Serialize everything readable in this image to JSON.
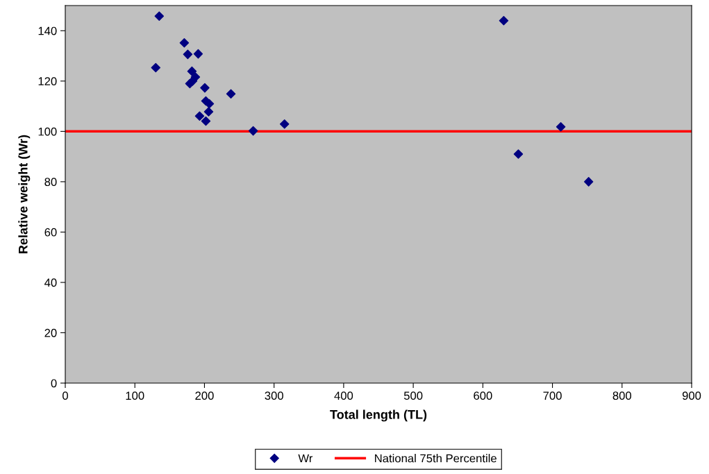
{
  "chart_data": {
    "type": "scatter",
    "xlabel": "Total length (TL)",
    "ylabel": "Relative weight (Wr)",
    "xlim": [
      0,
      900
    ],
    "xticks": [
      0,
      100,
      200,
      300,
      400,
      500,
      600,
      700,
      800,
      900
    ],
    "ylim": [
      0,
      150
    ],
    "yticks": [
      0,
      20,
      40,
      60,
      80,
      100,
      120,
      140
    ],
    "series": [
      {
        "name": "Wr",
        "color": "#000080",
        "marker": "diamond",
        "x": [
          135,
          171,
          176,
          191,
          130,
          182,
          187,
          179,
          183,
          200.5,
          238,
          202,
          207,
          206,
          193,
          202,
          270,
          315,
          630,
          712,
          651,
          752
        ],
        "values": [
          145.8,
          135.2,
          130.6,
          130.8,
          125.3,
          123.9,
          121.6,
          119,
          120,
          117.3,
          114.9,
          112.1,
          111,
          107.8,
          106.1,
          104.1,
          100.2,
          102.9,
          144,
          101.8,
          91,
          80
        ]
      }
    ],
    "ref_lines": [
      {
        "axis": "y",
        "value": 100,
        "label": "National 75th Percentile",
        "color": "#ff0000",
        "line_style": "solid"
      }
    ],
    "grid": false,
    "legend": "bottom"
  }
}
